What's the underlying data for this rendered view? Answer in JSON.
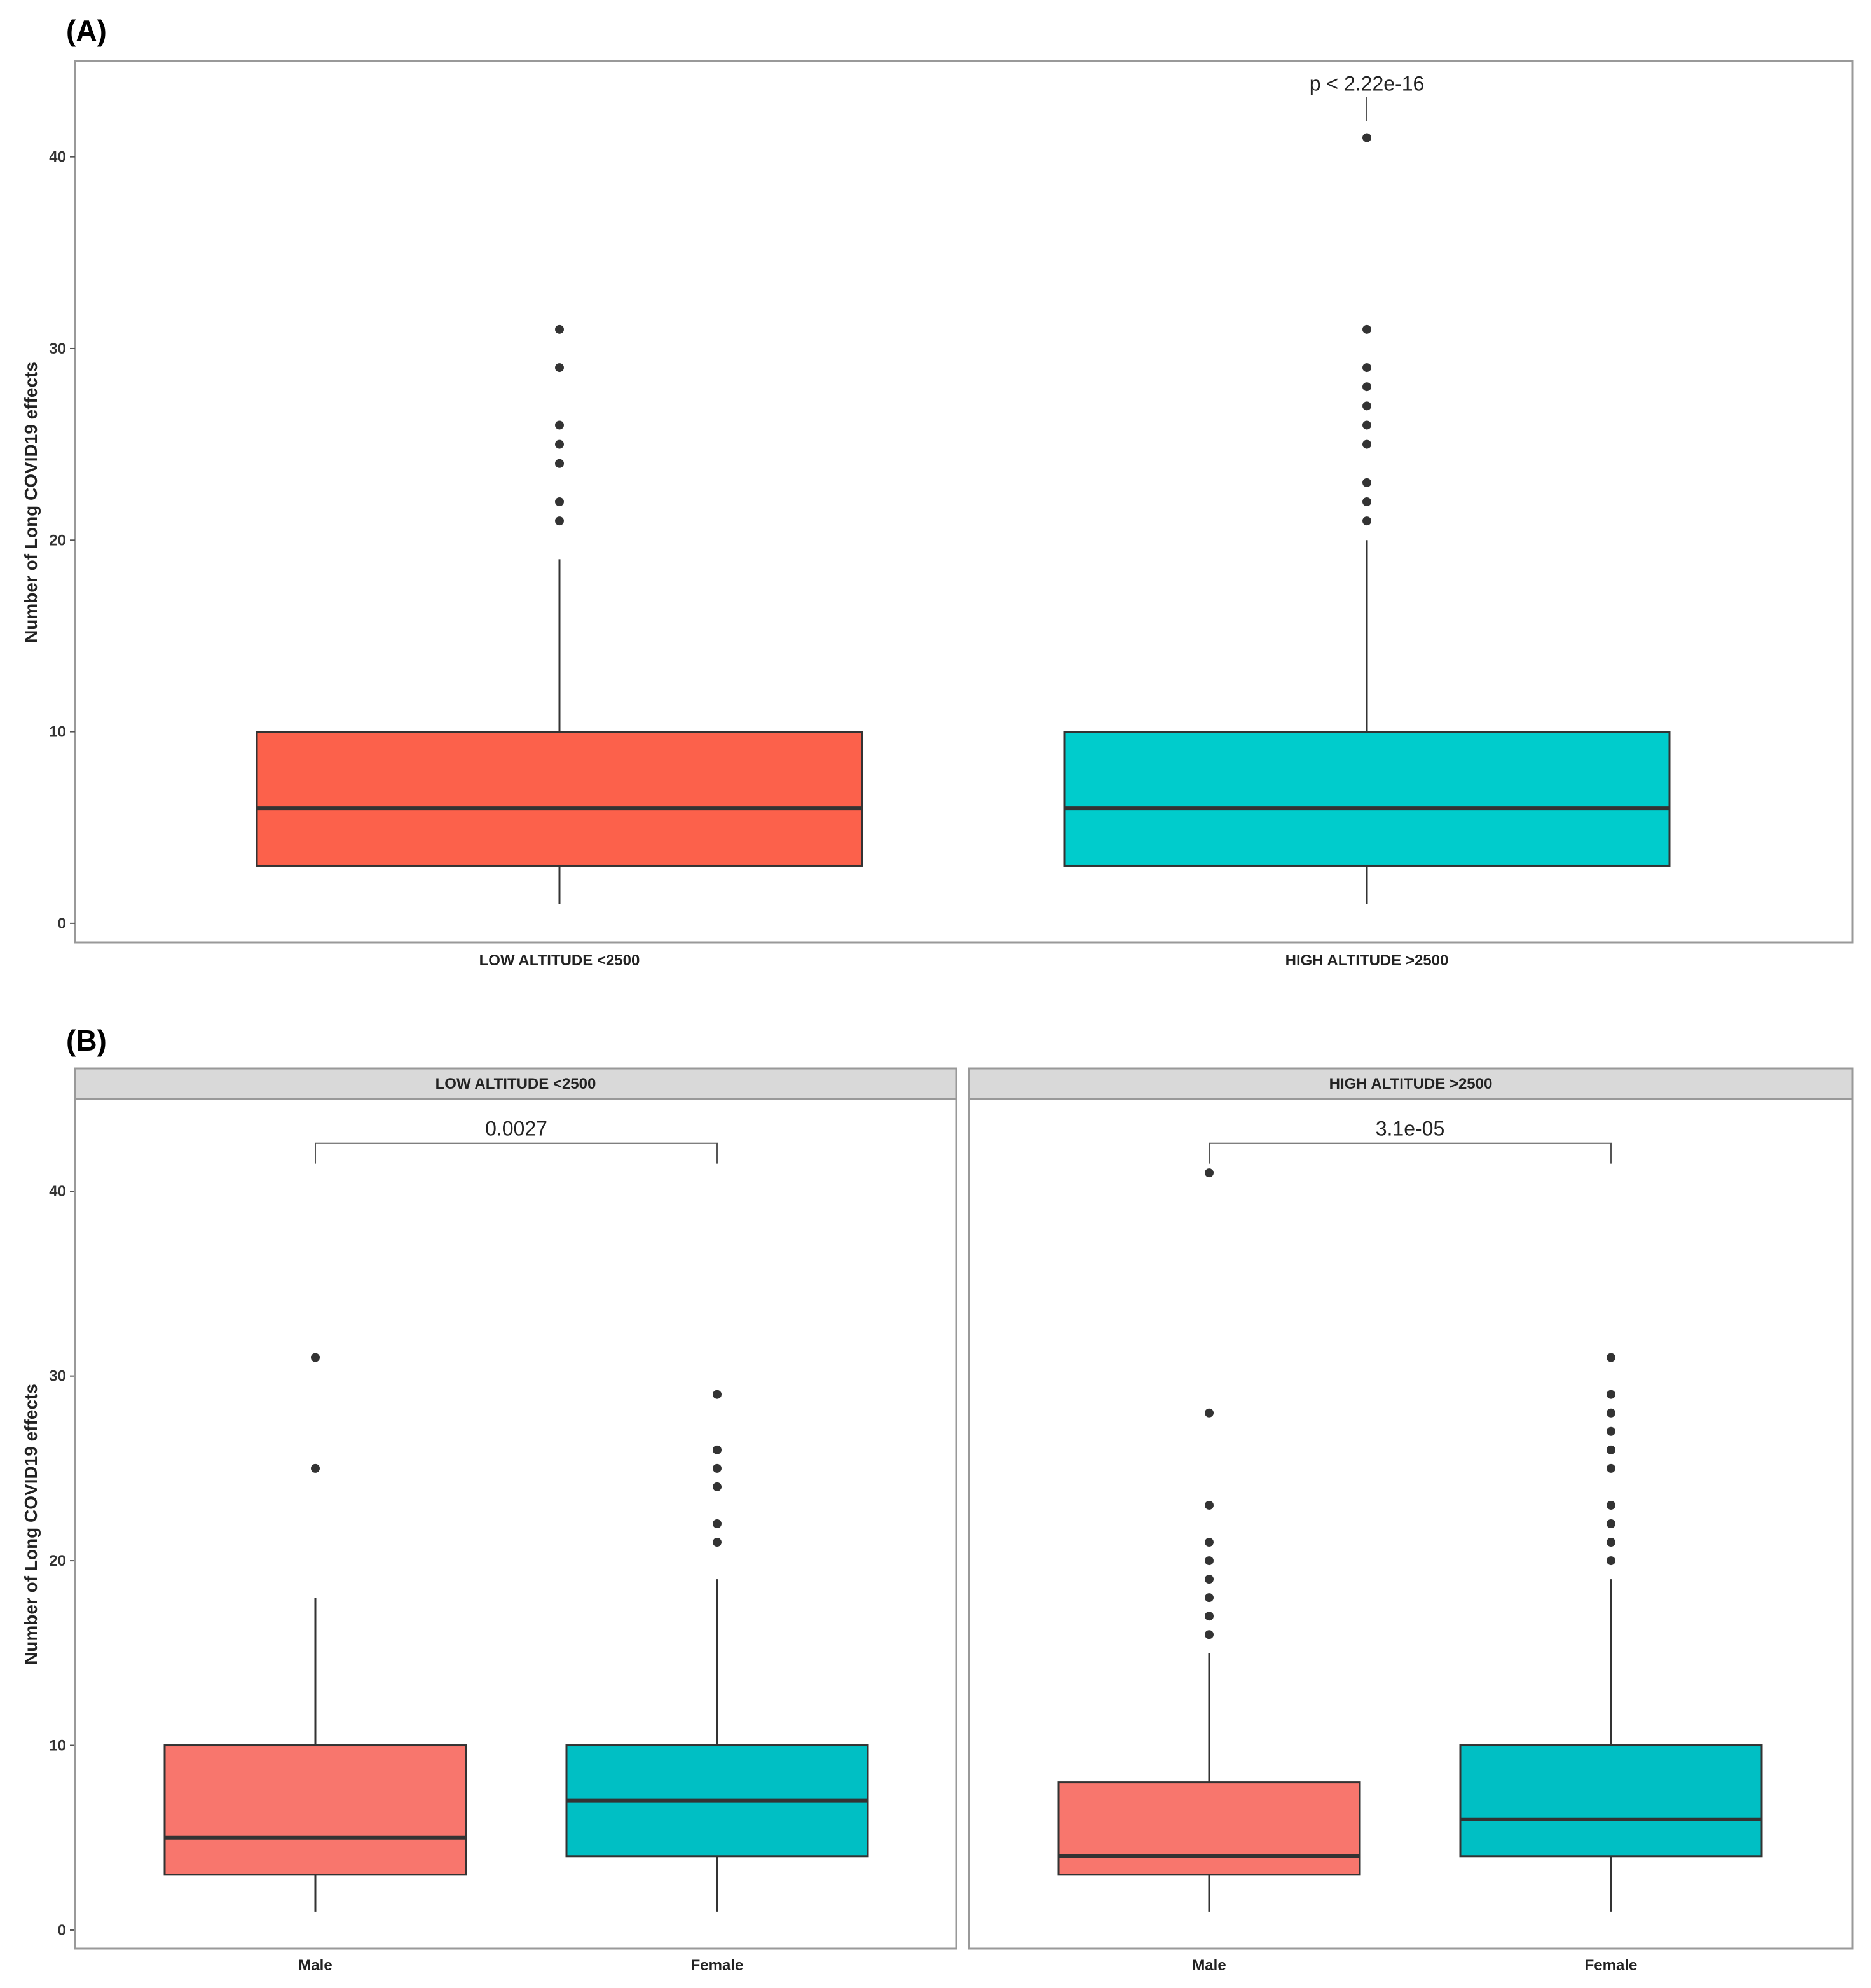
{
  "colors": {
    "low_box": "#fc614b",
    "high_box": "#00cccc",
    "male_box": "#f8766d",
    "female_box": "#00bfc4",
    "line": "#333333",
    "frame": "#999999",
    "strip_bg": "#d9d9d9"
  },
  "chart_data": [
    {
      "panel_label": "(A)",
      "type": "boxplot",
      "ylabel": "Number of Long COVID19 effects",
      "ylim": [
        -1,
        45
      ],
      "yticks": [
        0,
        10,
        20,
        30,
        40
      ],
      "annotation": "p < 2.22e-16",
      "categories": [
        "LOW ALTITUDE <2500",
        "HIGH ALTITUDE >2500"
      ],
      "boxes": [
        {
          "category": "LOW ALTITUDE <2500",
          "whisker_low": 1,
          "q1": 3,
          "median": 6,
          "q3": 10,
          "whisker_high": 19,
          "outliers": [
            21,
            22,
            24,
            25,
            26,
            29,
            31
          ],
          "color": "#fc614b"
        },
        {
          "category": "HIGH ALTITUDE >2500",
          "whisker_low": 1,
          "q1": 3,
          "median": 6,
          "q3": 10,
          "whisker_high": 20,
          "outliers": [
            21,
            22,
            23,
            25,
            26,
            27,
            28,
            29,
            31,
            41
          ],
          "color": "#00cccc"
        }
      ]
    },
    {
      "panel_label": "(B)",
      "type": "boxplot",
      "ylabel": "Number of Long COVID19 effects",
      "ylim": [
        -1,
        45
      ],
      "yticks": [
        0,
        10,
        20,
        30,
        40
      ],
      "facets": [
        {
          "strip": "LOW ALTITUDE <2500",
          "annotation": "0.0027",
          "categories": [
            "Male",
            "Female"
          ],
          "boxes": [
            {
              "category": "Male",
              "whisker_low": 1,
              "q1": 3,
              "median": 5,
              "q3": 10,
              "whisker_high": 18,
              "outliers": [
                25,
                31
              ],
              "color": "#f8766d"
            },
            {
              "category": "Female",
              "whisker_low": 1,
              "q1": 4,
              "median": 7,
              "q3": 10,
              "whisker_high": 19,
              "outliers": [
                21,
                22,
                24,
                25,
                26,
                29
              ],
              "color": "#00bfc4"
            }
          ]
        },
        {
          "strip": "HIGH ALTITUDE >2500",
          "annotation": "3.1e-05",
          "categories": [
            "Male",
            "Female"
          ],
          "boxes": [
            {
              "category": "Male",
              "whisker_low": 1,
              "q1": 3,
              "median": 4,
              "q3": 8,
              "whisker_high": 15,
              "outliers": [
                16,
                17,
                18,
                19,
                20,
                21,
                23,
                28,
                41
              ],
              "color": "#f8766d"
            },
            {
              "category": "Female",
              "whisker_low": 1,
              "q1": 4,
              "median": 6,
              "q3": 10,
              "whisker_high": 19,
              "outliers": [
                20,
                21,
                22,
                23,
                25,
                26,
                27,
                28,
                29,
                31
              ],
              "color": "#00bfc4"
            }
          ]
        }
      ]
    }
  ]
}
